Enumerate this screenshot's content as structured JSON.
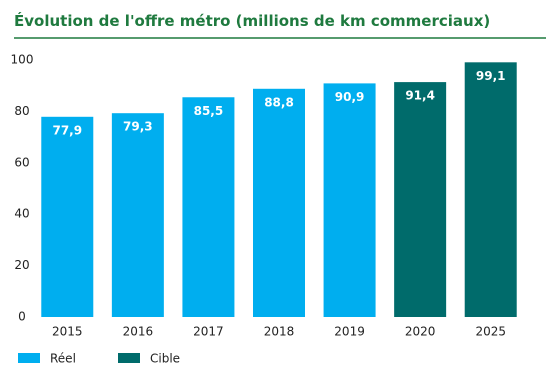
{
  "chart_data": {
    "type": "bar",
    "title": "Évolution de l'offre métro (millions de km commerciaux)",
    "categories": [
      "2015",
      "2016",
      "2017",
      "2018",
      "2019",
      "2020",
      "2025"
    ],
    "series": [
      {
        "name": "Réel",
        "color": "#00aeef",
        "values": [
          77.9,
          79.3,
          85.5,
          88.8,
          90.9,
          null,
          null
        ],
        "value_labels": [
          "77,9",
          "79,3",
          "85,5",
          "88,8",
          "90,9",
          null,
          null
        ]
      },
      {
        "name": "Cible",
        "color": "#006b6b",
        "values": [
          null,
          null,
          null,
          null,
          null,
          91.4,
          99.1
        ],
        "value_labels": [
          null,
          null,
          null,
          null,
          null,
          "91,4",
          "99,1"
        ]
      }
    ],
    "ylim": [
      0,
      100
    ],
    "yticks": [
      0,
      20,
      40,
      60,
      80,
      100
    ],
    "grid": false
  }
}
